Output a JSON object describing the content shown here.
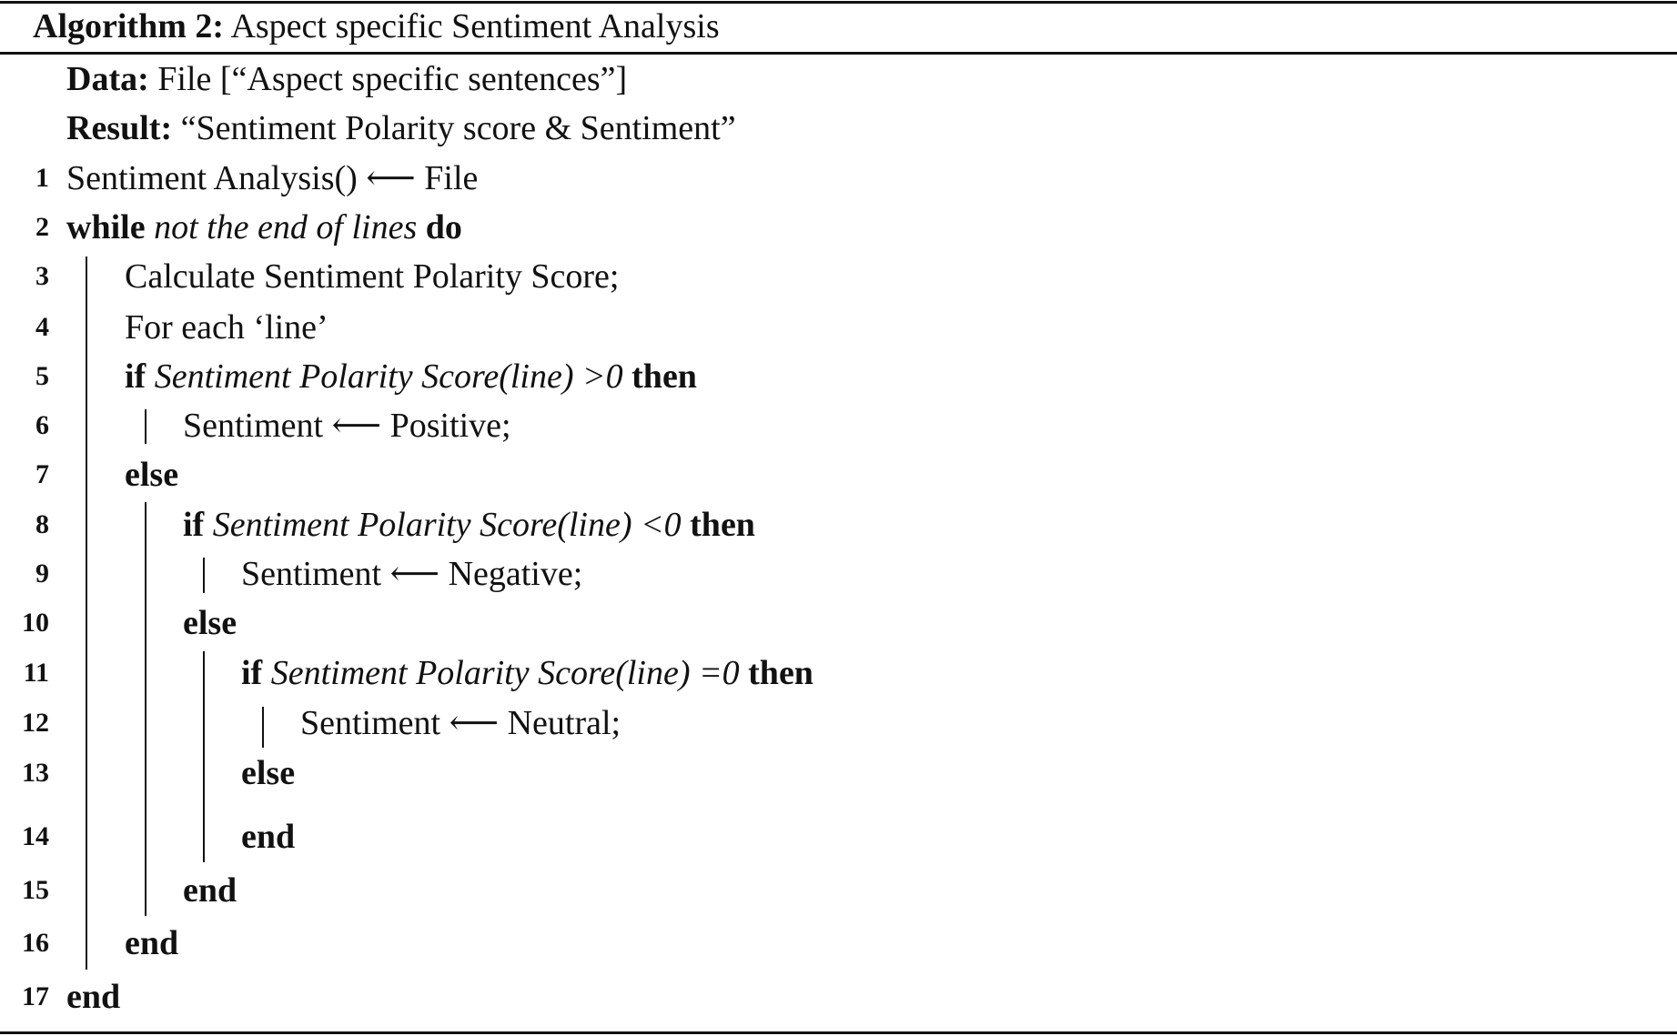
{
  "caption": {
    "label": "Algorithm 2:",
    "title": "Aspect specific Sentiment Analysis"
  },
  "header_rows": [
    {
      "segments": [
        {
          "t": "Data:",
          "s": "b"
        },
        {
          "t": " File [“Aspect specific sentences”]",
          "s": ""
        }
      ]
    },
    {
      "segments": [
        {
          "t": "Result:",
          "s": "b"
        },
        {
          "t": " “Sentiment Polarity score & Sentiment”",
          "s": ""
        }
      ]
    }
  ],
  "lines": [
    {
      "n": "1",
      "level": 0,
      "segments": [
        {
          "t": "Sentiment Analysis() ⟵ File",
          "s": ""
        }
      ]
    },
    {
      "n": "2",
      "level": 0,
      "segments": [
        {
          "t": "while",
          "s": "b"
        },
        {
          "t": " not the end of lines ",
          "s": "i"
        },
        {
          "t": "do",
          "s": "b"
        }
      ]
    },
    {
      "n": "3",
      "level": 1,
      "segments": [
        {
          "t": "Calculate Sentiment Polarity Score;",
          "s": ""
        }
      ]
    },
    {
      "n": "4",
      "level": 1,
      "segments": [
        {
          "t": "For each ‘line’",
          "s": ""
        }
      ]
    },
    {
      "n": "5",
      "level": 1,
      "segments": [
        {
          "t": "if",
          "s": "b"
        },
        {
          "t": " Sentiment Polarity Score(line) >0 ",
          "s": "i"
        },
        {
          "t": "then",
          "s": "b"
        }
      ]
    },
    {
      "n": "6",
      "level": 2,
      "segments": [
        {
          "t": "Sentiment ⟵ Positive;",
          "s": ""
        }
      ]
    },
    {
      "n": "7",
      "level": 1,
      "segments": [
        {
          "t": "else",
          "s": "b"
        }
      ]
    },
    {
      "n": "8",
      "level": 2,
      "segments": [
        {
          "t": "if",
          "s": "b"
        },
        {
          "t": " Sentiment Polarity Score(line) <0 ",
          "s": "i"
        },
        {
          "t": "then",
          "s": "b"
        }
      ]
    },
    {
      "n": "9",
      "level": 3,
      "segments": [
        {
          "t": "Sentiment ⟵ Negative;",
          "s": ""
        }
      ]
    },
    {
      "n": "10",
      "level": 2,
      "segments": [
        {
          "t": "else",
          "s": "b"
        }
      ]
    },
    {
      "n": "11",
      "level": 3,
      "segments": [
        {
          "t": "if",
          "s": "b"
        },
        {
          "t": " Sentiment Polarity Score(line) =0 ",
          "s": "i"
        },
        {
          "t": "then",
          "s": "b"
        }
      ]
    },
    {
      "n": "12",
      "level": 4,
      "segments": [
        {
          "t": "Sentiment ⟵ Neutral;",
          "s": ""
        }
      ]
    },
    {
      "n": "13",
      "level": 3,
      "segments": [
        {
          "t": "else",
          "s": "b"
        }
      ]
    },
    {
      "n": "14",
      "level": 3,
      "segments": [
        {
          "t": "end",
          "s": "b"
        }
      ]
    },
    {
      "n": "15",
      "level": 2,
      "segments": [
        {
          "t": "end",
          "s": "b"
        }
      ]
    },
    {
      "n": "16",
      "level": 1,
      "segments": [
        {
          "t": "end",
          "s": "b"
        }
      ]
    },
    {
      "n": "17",
      "level": 0,
      "segments": [
        {
          "t": "end",
          "s": "b"
        }
      ]
    }
  ]
}
